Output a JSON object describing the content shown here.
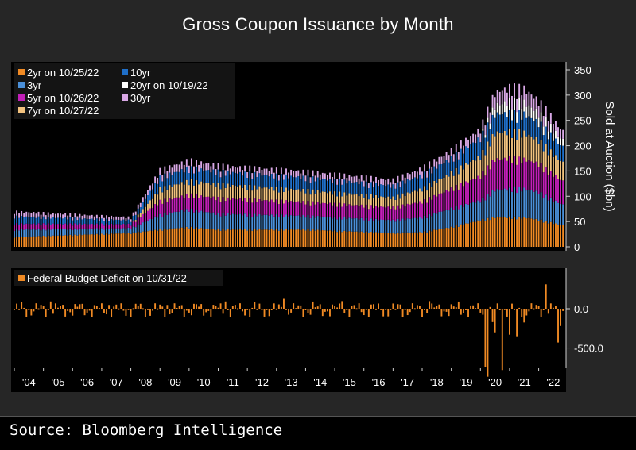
{
  "title": "Gross Coupon Issuance by Month",
  "source": "Source: Bloomberg Intelligence",
  "colors": {
    "background": "#262626",
    "plot_background": "#000000",
    "2yr": "#f08a24",
    "3yr": "#4a8fd8",
    "5yr": "#c21fb8",
    "7yr": "#f2c27e",
    "10yr": "#1f6fc9",
    "20yr": "#ffffff",
    "30yr": "#d9a8e6",
    "deficit": "#f08a24"
  },
  "chart_data": [
    {
      "type": "bar",
      "stacked": true,
      "x_tick_labels": [
        "'04",
        "'05",
        "'06",
        "'07",
        "'08",
        "'09",
        "'10",
        "'11",
        "'12",
        "'13",
        "'14",
        "'15",
        "'16",
        "'17",
        "'18",
        "'19",
        "'20",
        "'21",
        "'22"
      ],
      "x_range": [
        2004.0,
        2022.83
      ],
      "ylabel": "Sold at Auction ($bn)",
      "ylim": [
        0,
        350
      ],
      "yticks": [
        0,
        50,
        100,
        150,
        200,
        250,
        300,
        350
      ],
      "legend": [
        "2yr on 10/25/22",
        "10yr",
        "3yr",
        "20yr on 10/19/22",
        "5yr on 10/26/22",
        "30yr",
        "7yr on 10/27/22"
      ],
      "legend_position": "top-left",
      "series": [
        {
          "name": "2yr on 10/25/22",
          "x": [
            2004,
            2008,
            2009,
            2010,
            2011,
            2014,
            2017,
            2018,
            2019,
            2020,
            2020.5,
            2021,
            2021.5,
            2022,
            2022.8
          ],
          "values": [
            20,
            28,
            35,
            40,
            35,
            35,
            28,
            30,
            40,
            54,
            60,
            60,
            60,
            55,
            44
          ]
        },
        {
          "name": "3yr",
          "x": [
            2004,
            2008,
            2009,
            2010,
            2011,
            2014,
            2017,
            2018,
            2019,
            2020,
            2020.5,
            2021,
            2021.5,
            2022,
            2022.8
          ],
          "values": [
            15,
            10,
            30,
            36,
            32,
            28,
            26,
            30,
            38,
            40,
            56,
            58,
            58,
            56,
            42
          ]
        },
        {
          "name": "5yr on 10/26/22",
          "x": [
            2004,
            2008,
            2009,
            2010,
            2011,
            2014,
            2017,
            2018,
            2019,
            2020,
            2020.5,
            2021,
            2021.5,
            2022,
            2022.8
          ],
          "values": [
            12,
            8,
            28,
            30,
            32,
            28,
            26,
            32,
            40,
            50,
            62,
            62,
            60,
            58,
            48
          ]
        },
        {
          "name": "7yr on 10/27/22",
          "x": [
            2004,
            2008,
            2009,
            2010,
            2011,
            2014,
            2017,
            2018,
            2019,
            2020,
            2020.5,
            2021,
            2021.5,
            2022,
            2022.8
          ],
          "values": [
            0,
            0,
            25,
            28,
            28,
            24,
            20,
            26,
            32,
            40,
            54,
            54,
            54,
            48,
            38
          ]
        },
        {
          "name": "10yr",
          "x": [
            2004,
            2008,
            2009,
            2010,
            2011,
            2014,
            2017,
            2018,
            2019,
            2020,
            2020.5,
            2021,
            2021.5,
            2022,
            2022.8
          ],
          "values": [
            15,
            8,
            24,
            26,
            26,
            26,
            24,
            28,
            30,
            38,
            38,
            38,
            38,
            36,
            32
          ]
        },
        {
          "name": "20yr on 10/19/22",
          "x": [
            2004,
            2008,
            2009,
            2010,
            2011,
            2014,
            2017,
            2018,
            2019,
            2020,
            2020.5,
            2021,
            2021.5,
            2022,
            2022.8
          ],
          "values": [
            0,
            0,
            0,
            0,
            0,
            0,
            0,
            0,
            0,
            0,
            18,
            24,
            24,
            20,
            14
          ]
        },
        {
          "name": "30yr",
          "x": [
            2004,
            2008,
            2009,
            2010,
            2011,
            2014,
            2017,
            2018,
            2019,
            2020,
            2020.5,
            2021,
            2021.5,
            2022,
            2022.8
          ],
          "values": [
            10,
            6,
            14,
            16,
            12,
            12,
            12,
            14,
            16,
            18,
            26,
            28,
            28,
            24,
            18
          ]
        }
      ]
    },
    {
      "type": "bar",
      "legend": [
        "Federal Budget Deficit on 10/31/22"
      ],
      "yticks": [
        0.0,
        -500.0
      ],
      "ytick_labels": [
        "0.0",
        "-500.0"
      ],
      "ylim": [
        -850,
        420
      ],
      "series": [
        {
          "name": "Federal Budget Deficit on 10/31/22",
          "x_range": [
            2004.0,
            2022.83
          ],
          "typical_range": [
            -150,
            110
          ],
          "spikes": [
            {
              "x": 2020.17,
              "value": -740
            },
            {
              "x": 2020.25,
              "value": -865
            },
            {
              "x": 2020.42,
              "value": -170
            },
            {
              "x": 2020.5,
              "value": -300
            },
            {
              "x": 2020.75,
              "value": -780
            },
            {
              "x": 2021.0,
              "value": -330
            },
            {
              "x": 2021.25,
              "value": -350
            },
            {
              "x": 2021.5,
              "value": -175
            },
            {
              "x": 2022.25,
              "value": 310
            },
            {
              "x": 2022.67,
              "value": -430
            },
            {
              "x": 2022.75,
              "value": -220
            }
          ]
        }
      ]
    }
  ]
}
